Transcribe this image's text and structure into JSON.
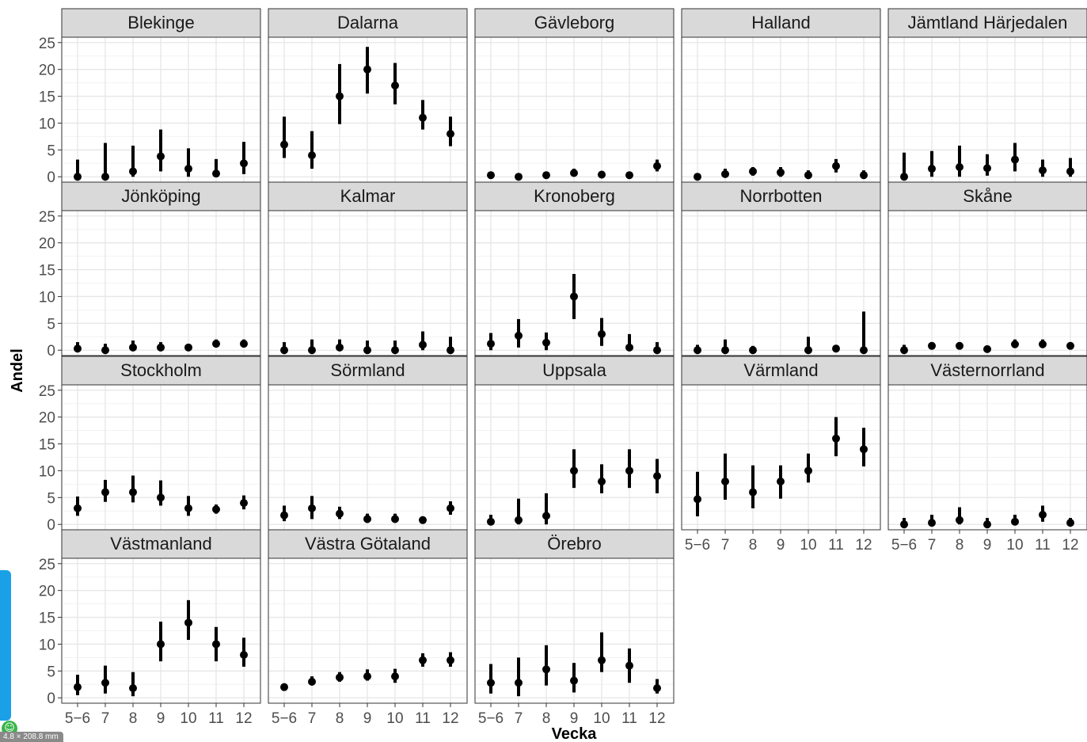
{
  "chart_data": {
    "type": "facet_pointrange",
    "xlabel": "Vecka",
    "ylabel": "Andel",
    "categories": [
      "5−6",
      "7",
      "8",
      "9",
      "10",
      "11",
      "12"
    ],
    "ylim": [
      -1,
      26
    ],
    "yticks": [
      "0",
      "5",
      "10",
      "15",
      "20",
      "25"
    ],
    "yticks_values": [
      0,
      5,
      10,
      15,
      20,
      25
    ],
    "grid": true,
    "point_color": "#000000",
    "panels": [
      {
        "name": "Blekinge",
        "points": [
          {
            "x": "5−6",
            "y": 0,
            "lo": 0,
            "hi": 3.2
          },
          {
            "x": "7",
            "y": 0,
            "lo": 0,
            "hi": 6.3
          },
          {
            "x": "8",
            "y": 1,
            "lo": 0,
            "hi": 5.8
          },
          {
            "x": "9",
            "y": 3.8,
            "lo": 1,
            "hi": 8.8
          },
          {
            "x": "10",
            "y": 1.5,
            "lo": 0,
            "hi": 5.3
          },
          {
            "x": "11",
            "y": 0.6,
            "lo": 0,
            "hi": 3.3
          },
          {
            "x": "12",
            "y": 2.5,
            "lo": 0.5,
            "hi": 6.5
          }
        ]
      },
      {
        "name": "Dalarna",
        "points": [
          {
            "x": "5−6",
            "y": 6,
            "lo": 3.5,
            "hi": 11.2
          },
          {
            "x": "7",
            "y": 4,
            "lo": 1.5,
            "hi": 8.5
          },
          {
            "x": "8",
            "y": 15,
            "lo": 9.8,
            "hi": 21
          },
          {
            "x": "9",
            "y": 20,
            "lo": 15.5,
            "hi": 24.2
          },
          {
            "x": "10",
            "y": 17,
            "lo": 13.5,
            "hi": 21.2
          },
          {
            "x": "11",
            "y": 11,
            "lo": 8.8,
            "hi": 14.3
          },
          {
            "x": "12",
            "y": 8,
            "lo": 5.7,
            "hi": 11.2
          }
        ]
      },
      {
        "name": "Gävleborg",
        "points": [
          {
            "x": "5−6",
            "y": 0.3,
            "lo": 0,
            "hi": 0.8
          },
          {
            "x": "7",
            "y": 0,
            "lo": 0,
            "hi": 0.5
          },
          {
            "x": "8",
            "y": 0.3,
            "lo": 0,
            "hi": 0.8
          },
          {
            "x": "9",
            "y": 0.7,
            "lo": 0.1,
            "hi": 1.5
          },
          {
            "x": "10",
            "y": 0.4,
            "lo": 0,
            "hi": 1.0
          },
          {
            "x": "11",
            "y": 0.3,
            "lo": 0,
            "hi": 0.9
          },
          {
            "x": "12",
            "y": 2,
            "lo": 1,
            "hi": 3.2
          }
        ]
      },
      {
        "name": "Halland",
        "points": [
          {
            "x": "5−6",
            "y": 0,
            "lo": 0,
            "hi": 0.6
          },
          {
            "x": "7",
            "y": 0.5,
            "lo": 0,
            "hi": 1.5
          },
          {
            "x": "8",
            "y": 1,
            "lo": 0.2,
            "hi": 1.8
          },
          {
            "x": "9",
            "y": 0.8,
            "lo": 0,
            "hi": 1.8
          },
          {
            "x": "10",
            "y": 0.3,
            "lo": 0,
            "hi": 1.2
          },
          {
            "x": "11",
            "y": 2,
            "lo": 0.8,
            "hi": 3.3
          },
          {
            "x": "12",
            "y": 0.3,
            "lo": 0,
            "hi": 1.2
          }
        ]
      },
      {
        "name": "Jämtland Härjedalen",
        "points": [
          {
            "x": "5−6",
            "y": 0,
            "lo": 0,
            "hi": 4.5
          },
          {
            "x": "7",
            "y": 1.5,
            "lo": 0,
            "hi": 4.8
          },
          {
            "x": "8",
            "y": 1.8,
            "lo": 0,
            "hi": 5.8
          },
          {
            "x": "9",
            "y": 1.6,
            "lo": 0.2,
            "hi": 4.2
          },
          {
            "x": "10",
            "y": 3.2,
            "lo": 1,
            "hi": 6.3
          },
          {
            "x": "11",
            "y": 1.2,
            "lo": 0,
            "hi": 3.2
          },
          {
            "x": "12",
            "y": 1,
            "lo": 0,
            "hi": 3.5
          }
        ]
      },
      {
        "name": "Jönköping",
        "points": [
          {
            "x": "5−6",
            "y": 0.3,
            "lo": 0,
            "hi": 1.5
          },
          {
            "x": "7",
            "y": 0,
            "lo": 0,
            "hi": 1.2
          },
          {
            "x": "8",
            "y": 0.5,
            "lo": 0,
            "hi": 1.8
          },
          {
            "x": "9",
            "y": 0.5,
            "lo": 0,
            "hi": 1.5
          },
          {
            "x": "10",
            "y": 0.5,
            "lo": 0,
            "hi": 1.2
          },
          {
            "x": "11",
            "y": 1.2,
            "lo": 0.5,
            "hi": 2
          },
          {
            "x": "12",
            "y": 1.2,
            "lo": 0.5,
            "hi": 2
          }
        ]
      },
      {
        "name": "Kalmar",
        "points": [
          {
            "x": "5−6",
            "y": 0,
            "lo": 0,
            "hi": 1.5
          },
          {
            "x": "7",
            "y": 0,
            "lo": 0,
            "hi": 2
          },
          {
            "x": "8",
            "y": 0.5,
            "lo": 0,
            "hi": 2
          },
          {
            "x": "9",
            "y": 0,
            "lo": 0,
            "hi": 1.8
          },
          {
            "x": "10",
            "y": 0,
            "lo": 0,
            "hi": 1.8
          },
          {
            "x": "11",
            "y": 1,
            "lo": 0,
            "hi": 3.5
          },
          {
            "x": "12",
            "y": 0,
            "lo": 0,
            "hi": 2.5
          }
        ]
      },
      {
        "name": "Kronoberg",
        "points": [
          {
            "x": "5−6",
            "y": 1.2,
            "lo": 0,
            "hi": 3.2
          },
          {
            "x": "7",
            "y": 2.7,
            "lo": 0.5,
            "hi": 5.8
          },
          {
            "x": "8",
            "y": 1.4,
            "lo": 0,
            "hi": 3.3
          },
          {
            "x": "9",
            "y": 10,
            "lo": 5.8,
            "hi": 14.2
          },
          {
            "x": "10",
            "y": 3,
            "lo": 0.8,
            "hi": 6
          },
          {
            "x": "11",
            "y": 0.5,
            "lo": 0,
            "hi": 3
          },
          {
            "x": "12",
            "y": 0,
            "lo": 0,
            "hi": 1.5
          }
        ]
      },
      {
        "name": "Norrbotten",
        "points": [
          {
            "x": "5−6",
            "y": 0,
            "lo": 0,
            "hi": 1
          },
          {
            "x": "7",
            "y": 0,
            "lo": 0,
            "hi": 2
          },
          {
            "x": "8",
            "y": 0,
            "lo": 0,
            "hi": 0.8
          },
          {
            "x": "10",
            "y": 0,
            "lo": 0,
            "hi": 2.5
          },
          {
            "x": "11",
            "y": 0.3,
            "lo": 0,
            "hi": 1
          },
          {
            "x": "12",
            "y": 0,
            "lo": 0,
            "hi": 7.2
          }
        ]
      },
      {
        "name": "Skåne",
        "points": [
          {
            "x": "5−6",
            "y": 0,
            "lo": 0,
            "hi": 1
          },
          {
            "x": "7",
            "y": 0.8,
            "lo": 0.2,
            "hi": 1.5
          },
          {
            "x": "8",
            "y": 0.8,
            "lo": 0.2,
            "hi": 1.5
          },
          {
            "x": "9",
            "y": 0.2,
            "lo": 0,
            "hi": 0.6
          },
          {
            "x": "10",
            "y": 1.1,
            "lo": 0.4,
            "hi": 2
          },
          {
            "x": "11",
            "y": 1.1,
            "lo": 0.4,
            "hi": 2
          },
          {
            "x": "12",
            "y": 0.8,
            "lo": 0.2,
            "hi": 1.5
          }
        ]
      },
      {
        "name": "Stockholm",
        "points": [
          {
            "x": "5−6",
            "y": 3,
            "lo": 1.6,
            "hi": 5.2
          },
          {
            "x": "7",
            "y": 6,
            "lo": 4.2,
            "hi": 8.3
          },
          {
            "x": "8",
            "y": 6,
            "lo": 4.1,
            "hi": 9.1
          },
          {
            "x": "9",
            "y": 5,
            "lo": 3.5,
            "hi": 8.2
          },
          {
            "x": "10",
            "y": 3,
            "lo": 1.6,
            "hi": 5.3
          },
          {
            "x": "11",
            "y": 2.8,
            "lo": 2,
            "hi": 3.7
          },
          {
            "x": "12",
            "y": 4,
            "lo": 2.8,
            "hi": 5.4
          }
        ]
      },
      {
        "name": "Sörmland",
        "points": [
          {
            "x": "5−6",
            "y": 1.7,
            "lo": 0.6,
            "hi": 3.5
          },
          {
            "x": "7",
            "y": 3,
            "lo": 1,
            "hi": 5.3
          },
          {
            "x": "8",
            "y": 2,
            "lo": 1,
            "hi": 3.3
          },
          {
            "x": "9",
            "y": 1,
            "lo": 0.3,
            "hi": 2
          },
          {
            "x": "10",
            "y": 1,
            "lo": 0.3,
            "hi": 2
          },
          {
            "x": "11",
            "y": 0.8,
            "lo": 0.3,
            "hi": 1.5
          },
          {
            "x": "12",
            "y": 3,
            "lo": 1.8,
            "hi": 4.3
          }
        ]
      },
      {
        "name": "Uppsala",
        "points": [
          {
            "x": "5−6",
            "y": 0.5,
            "lo": 0,
            "hi": 1.8
          },
          {
            "x": "7",
            "y": 0.8,
            "lo": 0,
            "hi": 4.8
          },
          {
            "x": "8",
            "y": 1.6,
            "lo": 0,
            "hi": 5.8
          },
          {
            "x": "9",
            "y": 10,
            "lo": 6.8,
            "hi": 14
          },
          {
            "x": "10",
            "y": 8,
            "lo": 5.8,
            "hi": 11.2
          },
          {
            "x": "11",
            "y": 10,
            "lo": 6.8,
            "hi": 14
          },
          {
            "x": "12",
            "y": 9,
            "lo": 5.8,
            "hi": 12.2
          }
        ]
      },
      {
        "name": "Värmland",
        "points": [
          {
            "x": "5−6",
            "y": 4.7,
            "lo": 1.5,
            "hi": 9.8
          },
          {
            "x": "7",
            "y": 8,
            "lo": 4.6,
            "hi": 13.2
          },
          {
            "x": "8",
            "y": 6,
            "lo": 3,
            "hi": 11
          },
          {
            "x": "9",
            "y": 8,
            "lo": 4.8,
            "hi": 11
          },
          {
            "x": "10",
            "y": 10,
            "lo": 7.8,
            "hi": 13.2
          },
          {
            "x": "11",
            "y": 16,
            "lo": 12.7,
            "hi": 20
          },
          {
            "x": "12",
            "y": 14,
            "lo": 10.8,
            "hi": 18
          }
        ]
      },
      {
        "name": "Västernorrland",
        "points": [
          {
            "x": "5−6",
            "y": 0,
            "lo": 0,
            "hi": 1.2
          },
          {
            "x": "7",
            "y": 0.3,
            "lo": 0,
            "hi": 1.8
          },
          {
            "x": "8",
            "y": 0.8,
            "lo": 0,
            "hi": 3.2
          },
          {
            "x": "9",
            "y": 0,
            "lo": 0,
            "hi": 1.2
          },
          {
            "x": "10",
            "y": 0.5,
            "lo": 0,
            "hi": 1.8
          },
          {
            "x": "11",
            "y": 1.8,
            "lo": 0.5,
            "hi": 3.5
          },
          {
            "x": "12",
            "y": 0.3,
            "lo": 0,
            "hi": 1.2
          }
        ]
      },
      {
        "name": "Västmanland",
        "points": [
          {
            "x": "5−6",
            "y": 2,
            "lo": 0.5,
            "hi": 4.3
          },
          {
            "x": "7",
            "y": 2.8,
            "lo": 0.8,
            "hi": 6
          },
          {
            "x": "8",
            "y": 1.8,
            "lo": 0.3,
            "hi": 4.8
          },
          {
            "x": "9",
            "y": 10,
            "lo": 6.8,
            "hi": 14.2
          },
          {
            "x": "10",
            "y": 14,
            "lo": 10.8,
            "hi": 18.2
          },
          {
            "x": "11",
            "y": 10,
            "lo": 6.8,
            "hi": 13.2
          },
          {
            "x": "12",
            "y": 8,
            "lo": 5.8,
            "hi": 11.2
          }
        ]
      },
      {
        "name": "Västra Götaland",
        "points": [
          {
            "x": "5−6",
            "y": 2,
            "lo": 1.5,
            "hi": 2.4
          },
          {
            "x": "7",
            "y": 3,
            "lo": 2.3,
            "hi": 4
          },
          {
            "x": "8",
            "y": 3.8,
            "lo": 3,
            "hi": 4.8
          },
          {
            "x": "9",
            "y": 4,
            "lo": 3.2,
            "hi": 5.3
          },
          {
            "x": "10",
            "y": 4,
            "lo": 2.8,
            "hi": 5.4
          },
          {
            "x": "11",
            "y": 7,
            "lo": 5.8,
            "hi": 8.3
          },
          {
            "x": "12",
            "y": 7,
            "lo": 5.8,
            "hi": 8.5
          }
        ]
      },
      {
        "name": "Örebro",
        "points": [
          {
            "x": "5−6",
            "y": 2.8,
            "lo": 0.8,
            "hi": 6.3
          },
          {
            "x": "7",
            "y": 2.8,
            "lo": 0.3,
            "hi": 7.5
          },
          {
            "x": "8",
            "y": 5.3,
            "lo": 2.3,
            "hi": 9.8
          },
          {
            "x": "9",
            "y": 3.2,
            "lo": 1,
            "hi": 6.5
          },
          {
            "x": "10",
            "y": 7,
            "lo": 4.8,
            "hi": 12.2
          },
          {
            "x": "11",
            "y": 6,
            "lo": 2.8,
            "hi": 9.2
          },
          {
            "x": "12",
            "y": 1.8,
            "lo": 0.8,
            "hi": 3.5
          }
        ]
      }
    ]
  },
  "overlay": {
    "scale_label": "4.8 × 208.8 mm",
    "badge_glyph": "☺"
  }
}
